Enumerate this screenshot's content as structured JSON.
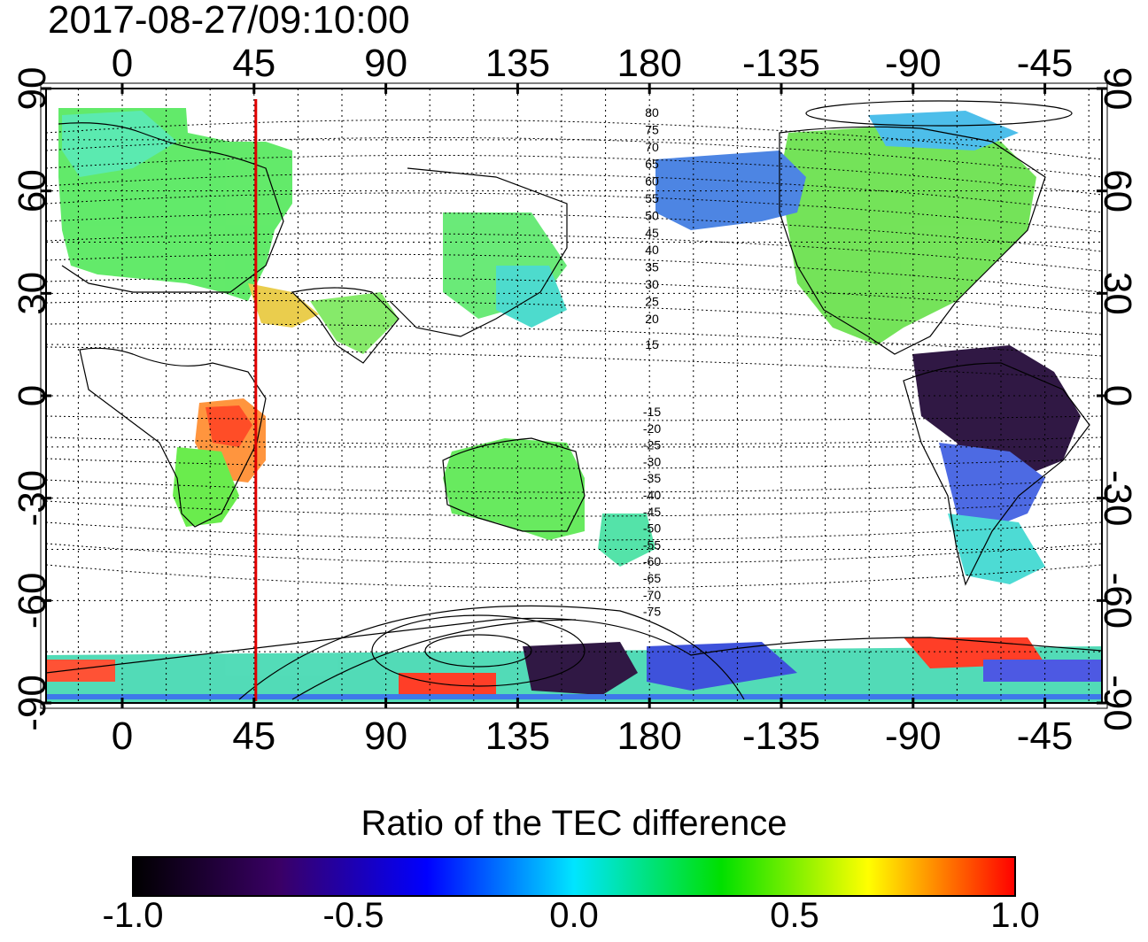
{
  "title": "2017-08-27/09:10:00",
  "map": {
    "lon_ticks_top": [
      "0",
      "45",
      "90",
      "135",
      "180",
      "-135",
      "-90",
      "-45"
    ],
    "lon_ticks_bottom": [
      "0",
      "45",
      "90",
      "135",
      "180",
      "-135",
      "-90",
      "-45"
    ],
    "lat_ticks_left": [
      "90",
      "60",
      "30",
      "0",
      "-30",
      "-60",
      "-90"
    ],
    "lat_ticks_right": [
      "90",
      "60",
      "30",
      "0",
      "-30",
      "-60",
      "-90"
    ],
    "contour_labels_north": [
      "80",
      "75",
      "70",
      "65",
      "60",
      "55",
      "50",
      "45",
      "40",
      "35",
      "30",
      "25",
      "20",
      "15"
    ],
    "contour_labels_south": [
      "-15",
      "-20",
      "-25",
      "-30",
      "-35",
      "-40",
      "-45",
      "-50",
      "-55",
      "-60",
      "-65",
      "-70",
      "-75"
    ],
    "marker_longitude": 45,
    "marker_color": "#e00000",
    "grid": "dotted"
  },
  "colorbar": {
    "title": "Ratio of the TEC difference",
    "ticks": [
      "-1.0",
      "-0.5",
      "0.0",
      "0.5",
      "1.0"
    ],
    "min": -1.0,
    "max": 1.0,
    "colors": [
      "#000000",
      "#3a0066",
      "#0000ff",
      "#00e5ff",
      "#00e000",
      "#ffff00",
      "#ff0000"
    ]
  }
}
